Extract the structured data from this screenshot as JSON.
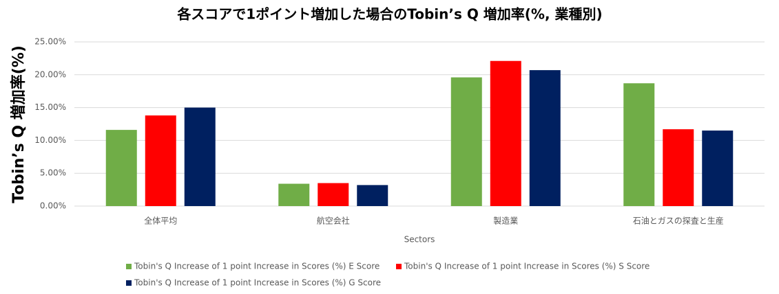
{
  "chart_data": {
    "type": "bar",
    "title": "各スコアで1ポイント増加した場合のTobin’s Q 増加率(%, 業種別)",
    "x_label": "Sectors",
    "y_label": "Tobin’s Q 増加率(%)",
    "categories": [
      "全体平均",
      "航空会社",
      "製造業",
      "石油とガスの探査と生産"
    ],
    "series": [
      {
        "name": "Tobin's Q Increase of 1 point Increase in Scores (%) E Score",
        "color": "#70ad47",
        "values": [
          11.6,
          3.4,
          19.6,
          18.7
        ]
      },
      {
        "name": "Tobin's Q Increase of 1 point Increase in Scores (%) S Score",
        "color": "#ff0000",
        "values": [
          13.8,
          3.5,
          22.1,
          11.7
        ]
      },
      {
        "name": "Tobin's Q Increase of 1 point Increase in Scores (%) G Score",
        "color": "#002060",
        "values": [
          15.0,
          3.2,
          20.7,
          11.5
        ]
      }
    ],
    "ylim": [
      0,
      25
    ],
    "yticks": [
      {
        "value": 0,
        "label": "0.00%"
      },
      {
        "value": 5,
        "label": "5.00%"
      },
      {
        "value": 10,
        "label": "10.00%"
      },
      {
        "value": 15,
        "label": "15.00%"
      },
      {
        "value": 20,
        "label": "20.00%"
      },
      {
        "value": 25,
        "label": "25.00%"
      }
    ],
    "grid": true,
    "legend": "bottom"
  }
}
